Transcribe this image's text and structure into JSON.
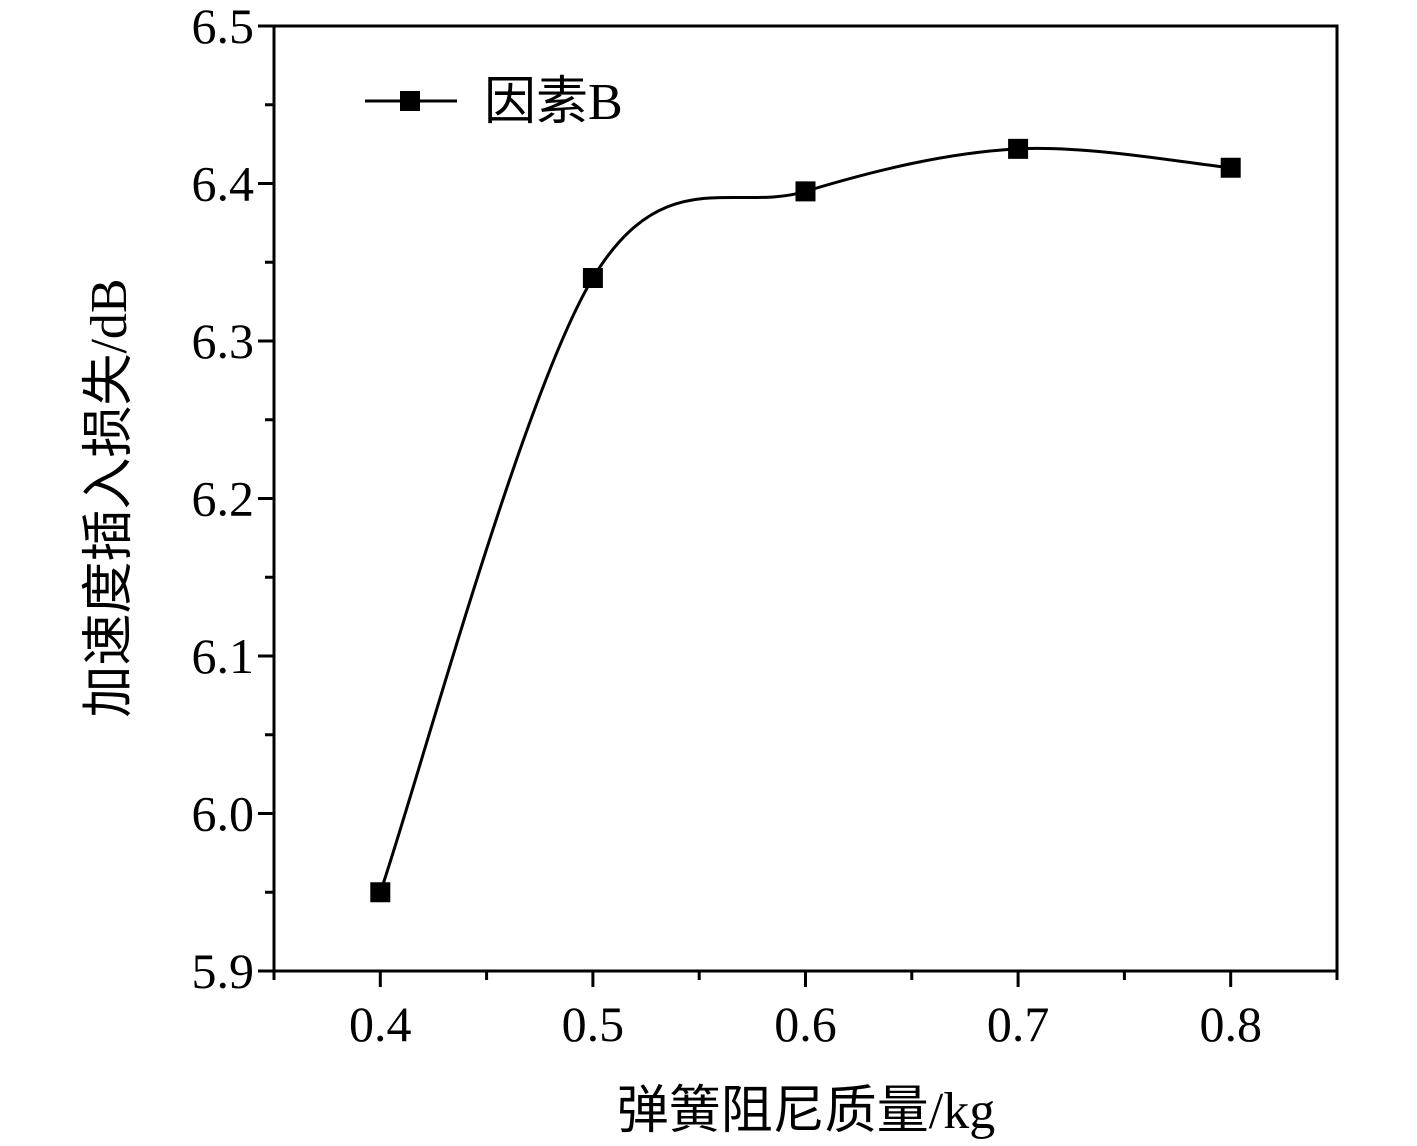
{
  "chart_data": {
    "type": "line",
    "x": [
      0.4,
      0.5,
      0.6,
      0.7,
      0.8
    ],
    "series": [
      {
        "name": "因素B",
        "values": [
          5.95,
          6.34,
          6.395,
          6.422,
          6.41
        ],
        "marker": "square",
        "smooth": true,
        "color": "#000000"
      }
    ],
    "xlabel": "弹簧阻尼质量/kg",
    "ylabel": "加速度插入损失/dB",
    "xlim": [
      0.35,
      0.85
    ],
    "ylim": [
      5.9,
      6.5
    ],
    "xticks": [
      "0.4",
      "0.5",
      "0.6",
      "0.7",
      "0.8"
    ],
    "yticks": [
      "5.9",
      "6.0",
      "6.1",
      "6.2",
      "6.3",
      "6.4",
      "6.5"
    ],
    "legend_position": "top-left",
    "grid": false
  }
}
